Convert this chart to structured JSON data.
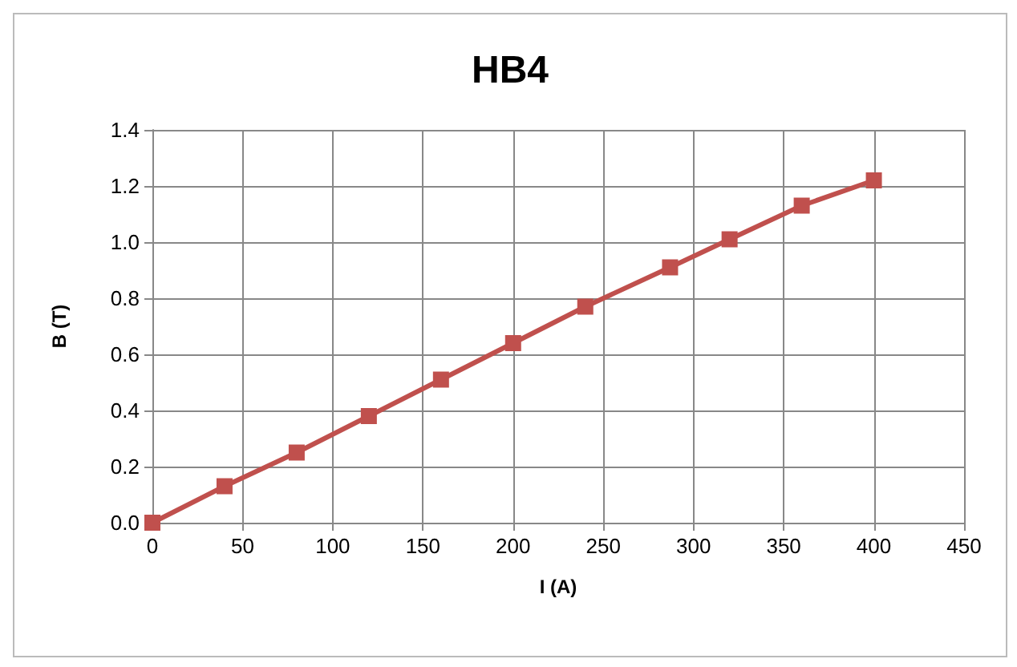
{
  "chart_data": {
    "type": "line",
    "title": "HB4",
    "xlabel": "I (A)",
    "ylabel": "B (T)",
    "x": [
      0,
      40,
      80,
      120,
      160,
      200,
      240,
      287,
      320,
      360,
      400
    ],
    "series": [
      {
        "color": "#c0504d",
        "values": [
          0,
          0.13,
          0.25,
          0.38,
          0.51,
          0.64,
          0.77,
          0.91,
          1.01,
          1.13,
          1.22
        ]
      }
    ],
    "xlim": [
      0,
      450
    ],
    "xticks": [
      0,
      50,
      100,
      150,
      200,
      250,
      300,
      350,
      400,
      450
    ],
    "ylim": [
      0,
      1.4
    ],
    "yticks": [
      {
        "value": 0,
        "label": "0.0"
      },
      {
        "value": 0.2,
        "label": "0.2"
      },
      {
        "value": 0.4,
        "label": "0.4"
      },
      {
        "value": 0.6,
        "label": "0.6"
      },
      {
        "value": 0.8,
        "label": "0.8"
      },
      {
        "value": 1,
        "label": "1.0"
      },
      {
        "value": 1.2,
        "label": "1.2"
      },
      {
        "value": 1.4,
        "label": "1.4"
      }
    ],
    "grid": true,
    "marker": "square",
    "line_style": "solid"
  }
}
